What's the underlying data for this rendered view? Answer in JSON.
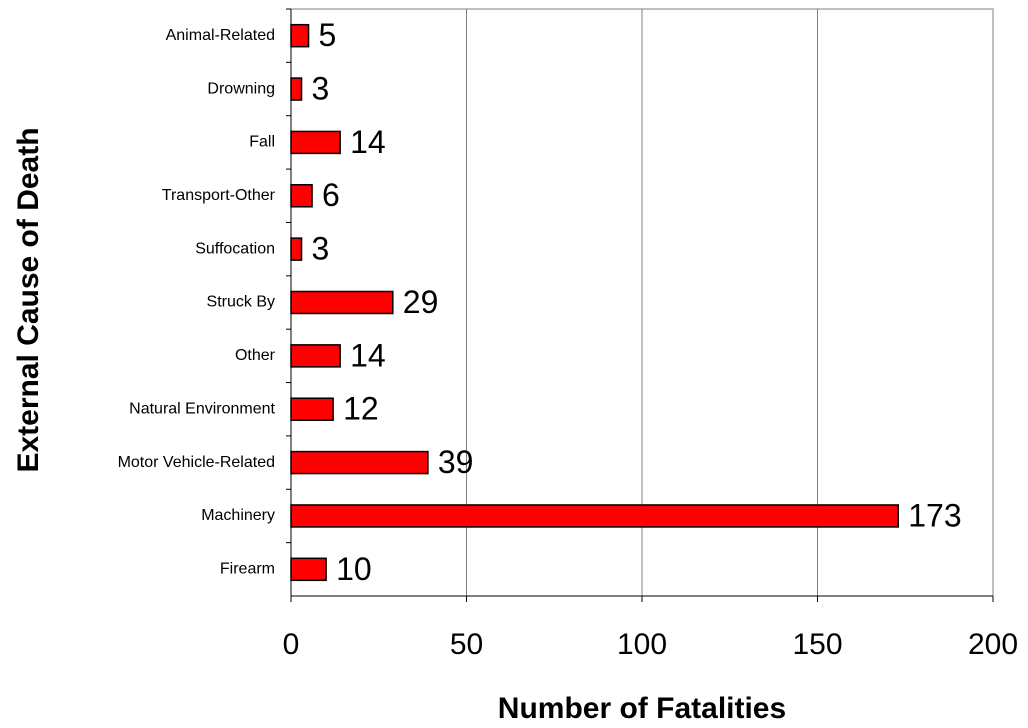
{
  "chart_data": {
    "type": "bar",
    "orientation": "horizontal",
    "x_label": "Number of Fatalities",
    "y_label": "External Cause of Death",
    "categories": [
      "Animal-Related",
      "Drowning",
      "Fall",
      "Transport-Other",
      "Suffocation",
      "Struck By",
      "Other",
      "Natural Environment",
      "Motor Vehicle-Related",
      "Machinery",
      "Firearm"
    ],
    "values": [
      5,
      3,
      14,
      6,
      3,
      29,
      14,
      12,
      39,
      173,
      10
    ],
    "color": "#ff0000",
    "xlim": [
      0,
      200
    ],
    "xticks": [
      0,
      50,
      100,
      150,
      200
    ],
    "grid": true
  }
}
